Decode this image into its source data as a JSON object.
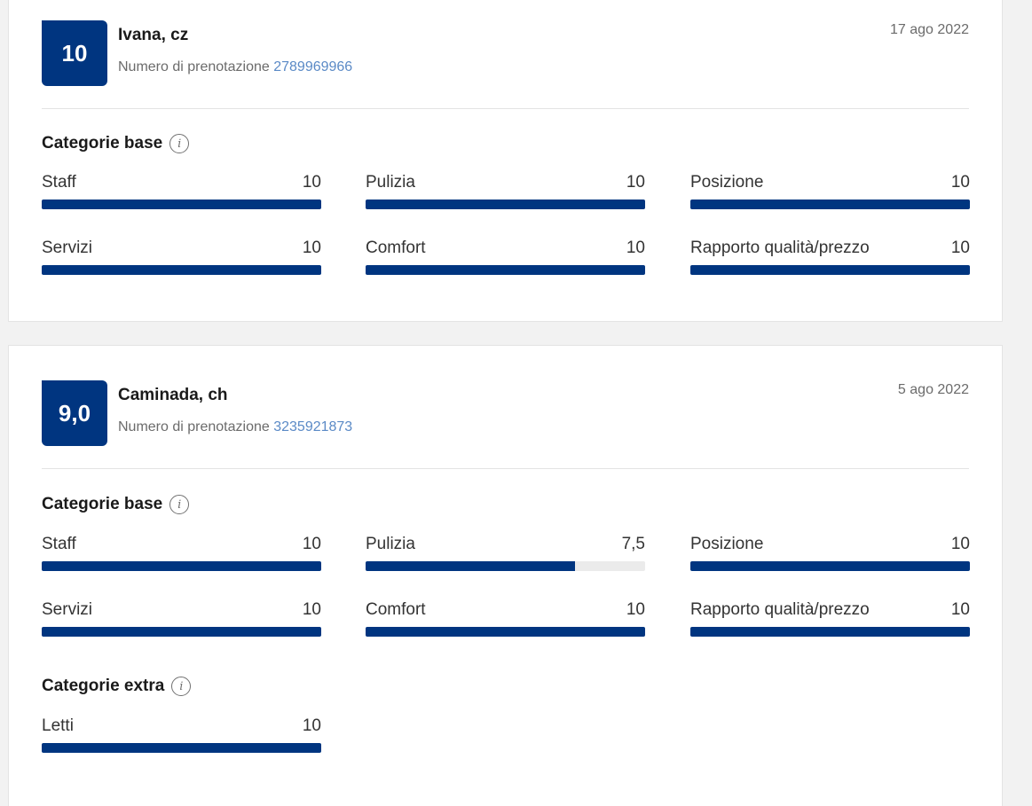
{
  "reviews": [
    {
      "score": "10",
      "name": "Ivana, cz",
      "booking_label": "Numero di prenotazione",
      "booking_number": "2789969966",
      "date": "17 ago 2022",
      "base_title": "Categorie base",
      "base": [
        {
          "label": "Staff",
          "value": "10",
          "fraction": 1.0
        },
        {
          "label": "Pulizia",
          "value": "10",
          "fraction": 1.0
        },
        {
          "label": "Posizione",
          "value": "10",
          "fraction": 1.0
        },
        {
          "label": "Servizi",
          "value": "10",
          "fraction": 1.0
        },
        {
          "label": "Comfort",
          "value": "10",
          "fraction": 1.0
        },
        {
          "label": "Rapporto qualità/prezzo",
          "value": "10",
          "fraction": 1.0
        }
      ]
    },
    {
      "score": "9,0",
      "name": "Caminada, ch",
      "booking_label": "Numero di prenotazione",
      "booking_number": "3235921873",
      "date": "5 ago 2022",
      "base_title": "Categorie base",
      "base": [
        {
          "label": "Staff",
          "value": "10",
          "fraction": 1.0
        },
        {
          "label": "Pulizia",
          "value": "7,5",
          "fraction": 0.75
        },
        {
          "label": "Posizione",
          "value": "10",
          "fraction": 1.0
        },
        {
          "label": "Servizi",
          "value": "10",
          "fraction": 1.0
        },
        {
          "label": "Comfort",
          "value": "10",
          "fraction": 1.0
        },
        {
          "label": "Rapporto qualità/prezzo",
          "value": "10",
          "fraction": 1.0
        }
      ],
      "extra_title": "Categorie extra",
      "extra": [
        {
          "label": "Letti",
          "value": "10",
          "fraction": 1.0
        }
      ]
    }
  ],
  "colors": {
    "score_bg": "#003580",
    "bar_fill": "#003580",
    "bar_track": "#ebebeb",
    "link": "#5b8ac6"
  },
  "icons": {
    "info": "info-icon"
  }
}
